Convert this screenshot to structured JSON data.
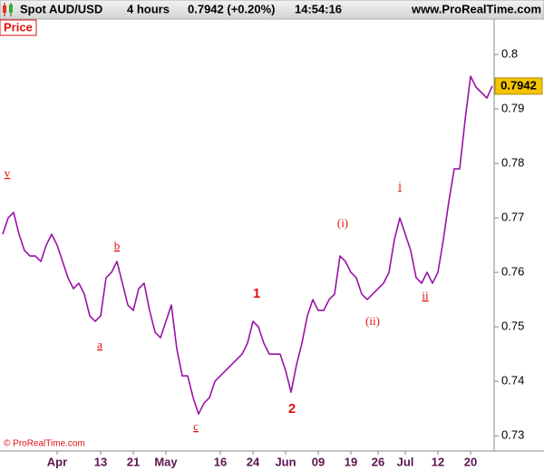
{
  "header": {
    "instrument": "Spot AUD/USD",
    "timeframe": "4 hours",
    "quote": "0.7942 (+0.20%)",
    "time": "14:54:16",
    "website": "www.ProRealTime.com"
  },
  "chart_data": {
    "type": "line",
    "panel_label": "Price",
    "copyright": "© ProRealTime.com",
    "categories": [
      null,
      null,
      null,
      null,
      null,
      null,
      null,
      null,
      null,
      null,
      "Apr",
      null,
      null,
      null,
      null,
      null,
      null,
      null,
      "13",
      null,
      null,
      null,
      null,
      null,
      "21",
      null,
      null,
      null,
      null,
      null,
      "May",
      null,
      null,
      null,
      null,
      null,
      null,
      null,
      null,
      null,
      "16",
      null,
      null,
      null,
      null,
      null,
      "24",
      null,
      null,
      null,
      null,
      null,
      "Jun",
      null,
      null,
      null,
      null,
      null,
      "09",
      null,
      null,
      null,
      null,
      null,
      "19",
      null,
      null,
      null,
      null,
      "26",
      null,
      null,
      null,
      null,
      "Jul",
      null,
      null,
      null,
      null,
      null,
      "12",
      null,
      null,
      null,
      null,
      null,
      "20",
      null,
      null,
      null,
      null
    ],
    "series": [
      {
        "name": "Spot AUD/USD",
        "color": "#9a12a8",
        "values": [
          0.767,
          0.77,
          0.771,
          0.767,
          0.764,
          0.763,
          0.763,
          0.762,
          0.765,
          0.767,
          0.765,
          0.762,
          0.759,
          0.757,
          0.758,
          0.756,
          0.752,
          0.751,
          0.752,
          0.759,
          0.76,
          0.762,
          0.758,
          0.754,
          0.753,
          0.757,
          0.758,
          0.753,
          0.749,
          0.748,
          0.751,
          0.754,
          0.746,
          0.741,
          0.741,
          0.737,
          0.734,
          0.736,
          0.737,
          0.74,
          0.741,
          0.742,
          0.743,
          0.744,
          0.745,
          0.747,
          0.751,
          0.75,
          0.747,
          0.745,
          0.745,
          0.745,
          0.742,
          0.738,
          0.743,
          0.747,
          0.752,
          0.755,
          0.753,
          0.753,
          0.755,
          0.756,
          0.763,
          0.762,
          0.76,
          0.759,
          0.756,
          0.755,
          0.756,
          0.757,
          0.758,
          0.76,
          0.766,
          0.77,
          0.767,
          0.764,
          0.759,
          0.758,
          0.76,
          0.758,
          0.76,
          0.766,
          0.773,
          0.779,
          0.779,
          0.788,
          0.796,
          0.794,
          0.793,
          0.792,
          0.7942
        ]
      }
    ],
    "ylim": [
      0.7272,
      0.8065
    ],
    "yticks": [
      0.73,
      0.74,
      0.75,
      0.76,
      0.77,
      0.78,
      0.79,
      0.8
    ],
    "last_value_color": "#f5c400",
    "grid": false,
    "annotations": [
      "v",
      "a",
      "b",
      "c",
      "1",
      "2",
      "(i)",
      "(ii)",
      "i",
      "ii"
    ]
  }
}
